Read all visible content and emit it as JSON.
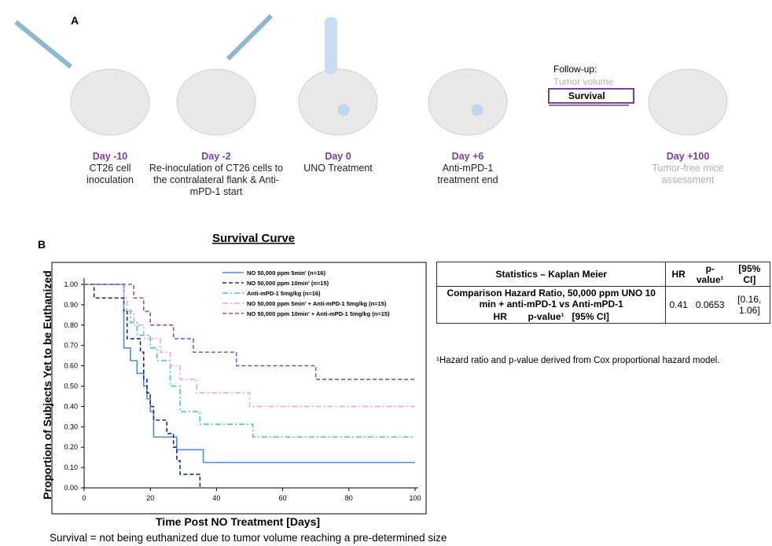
{
  "panel_a": {
    "label": "A",
    "steps": [
      {
        "day": "Day -10",
        "desc": "CT26 cell inoculation"
      },
      {
        "day": "Day -2",
        "desc": "Re-inoculation of CT26 cells to the contralateral flank & Anti-mPD-1 start"
      },
      {
        "day": "Day 0",
        "desc": "UNO Treatment"
      },
      {
        "day": "Day +6",
        "desc": "Anti-mPD-1 treatment end"
      },
      {
        "day": "Day +100",
        "desc": "Tumor-free mice assessment"
      }
    ],
    "followup": {
      "title": "Follow-up:",
      "item1": "Tumor volume",
      "item2": "Survival"
    }
  },
  "panel_b_label": "B",
  "chart_data": {
    "type": "line",
    "title": "Survival Curve",
    "x_label": "Time Post NO Treatment [Days]",
    "y_label": "Proportion of Subjects Yet to be Euthanized",
    "xlim": [
      0,
      100
    ],
    "xticks": [
      0,
      20,
      40,
      60,
      80,
      100
    ],
    "ylim": [
      0,
      1
    ],
    "yticks": [
      {
        "value": 0,
        "label": "0.00"
      },
      {
        "value": 0.1,
        "label": "0.10"
      },
      {
        "value": 0.2,
        "label": "0.20"
      },
      {
        "value": 0.3,
        "label": "0.30"
      },
      {
        "value": 0.4,
        "label": "0.40"
      },
      {
        "value": 0.5,
        "label": "0.50"
      },
      {
        "value": 0.6,
        "label": "0.60"
      },
      {
        "value": 0.7,
        "label": "0.70"
      },
      {
        "value": 0.8,
        "label": "0.80"
      },
      {
        "value": 0.9,
        "label": "0.90"
      },
      {
        "value": 1,
        "label": "1.00"
      }
    ],
    "step": true,
    "series": [
      {
        "name": "NO 50,000 ppm 5min' (n=16)",
        "color": "#4a8fd9",
        "line_style": "solid",
        "x": [
          0,
          12,
          14,
          16,
          18,
          19,
          20,
          21,
          28,
          36,
          100
        ],
        "values": [
          1,
          0.6875,
          0.625,
          0.5625,
          0.5,
          0.4375,
          0.375,
          0.25,
          0.1875,
          0.125,
          0.125
        ]
      },
      {
        "name": "NO 50,000 ppm 10min'  (n=15)",
        "color": "#1f2a7a",
        "line_style": "dashed",
        "x": [
          0,
          3,
          12,
          13,
          17,
          18,
          19,
          20,
          21,
          25,
          27,
          28,
          29,
          35
        ],
        "values": [
          1,
          0.933,
          0.867,
          0.733,
          0.667,
          0.533,
          0.467,
          0.4,
          0.333,
          0.267,
          0.2,
          0.133,
          0.067,
          0
        ]
      },
      {
        "name": "Anti-mPD-1 5mg/kg (n=16)",
        "color": "#3ccfa8",
        "line_style": "dashdot",
        "x": [
          0,
          12,
          14,
          16,
          20,
          22,
          26,
          29,
          35,
          51,
          100
        ],
        "values": [
          1,
          0.875,
          0.8125,
          0.75,
          0.6875,
          0.625,
          0.5,
          0.375,
          0.3125,
          0.25,
          0.25
        ]
      },
      {
        "name": "NO 50,000 ppm 5min' + Anti-mPD-1 5mg/kg (n=15)",
        "color": "#f0a0e4",
        "line_style": "dashdot",
        "x": [
          0,
          12,
          13,
          15,
          18,
          23,
          26,
          29,
          34,
          50,
          100
        ],
        "values": [
          1,
          0.933,
          0.867,
          0.8,
          0.733,
          0.667,
          0.6,
          0.533,
          0.467,
          0.4,
          0.4
        ]
      },
      {
        "name": "NO 50,000 ppm 10min' + Anti-mPD-1 5mg/kg (n=15)",
        "color": "#8a55a8",
        "line_style": "dashed",
        "x": [
          0,
          15,
          18,
          20,
          27,
          33,
          46,
          70,
          100
        ],
        "values": [
          1,
          0.933,
          0.867,
          0.8,
          0.733,
          0.667,
          0.6,
          0.533,
          0.533
        ]
      }
    ]
  },
  "table": {
    "header": [
      "Statistics – Kaplan Meier",
      "HR",
      "p-value¹",
      "[95% CI]"
    ],
    "row": [
      "Comparison Hazard Ratio, 50,000 ppm  UNO 10 min + anti-mPD-1 vs Anti-mPD-1",
      "0.41",
      "0.0653",
      "[0.16, 1.06]"
    ],
    "subheader": "HR        p-value¹   [95% CI]"
  },
  "footnote": "¹Hazard ratio and p-value derived from Cox proportional hazard model.",
  "caption": "Survival = not being euthanized due to tumor volume reaching a pre-determined size"
}
